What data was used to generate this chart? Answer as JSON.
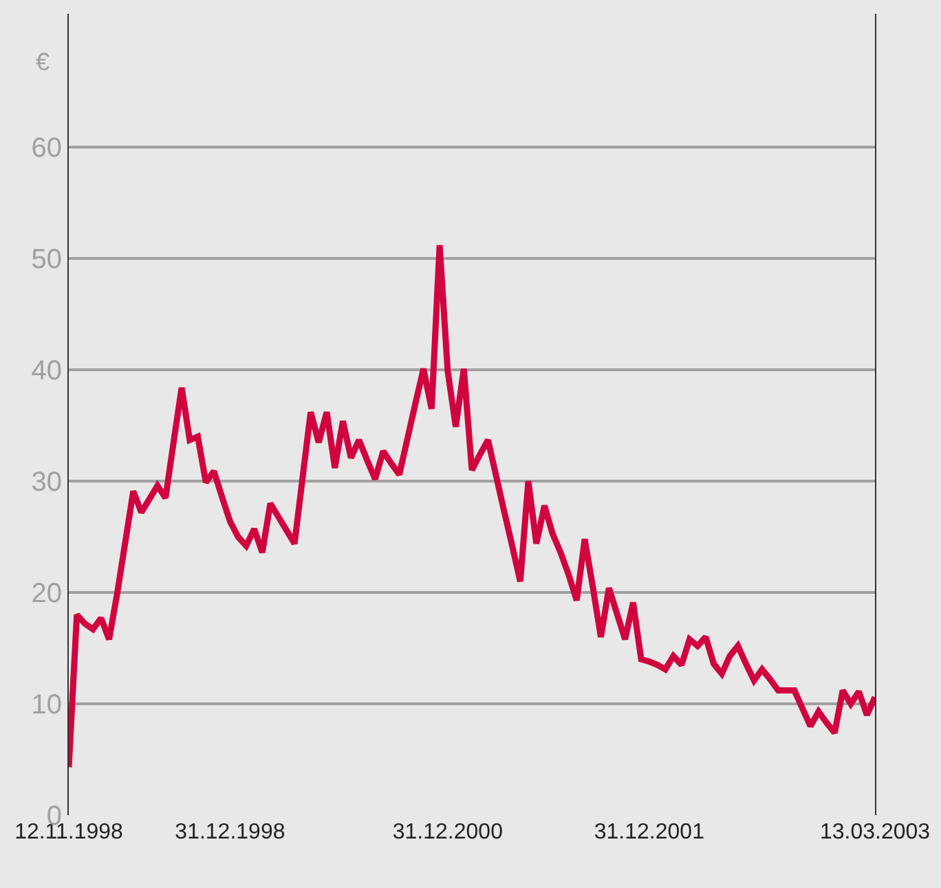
{
  "chart_data": {
    "type": "line",
    "ylabel": "€",
    "categories": [
      "12.11.1998",
      null,
      null,
      null,
      null,
      null,
      null,
      null,
      null,
      null,
      null,
      null,
      null,
      null,
      null,
      null,
      null,
      null,
      null,
      null,
      "31.12.1998",
      null,
      null,
      null,
      null,
      null,
      null,
      null,
      null,
      null,
      null,
      null,
      null,
      null,
      null,
      null,
      null,
      null,
      null,
      null,
      null,
      null,
      null,
      null,
      null,
      null,
      null,
      "31.12.2000",
      null,
      null,
      null,
      null,
      null,
      null,
      null,
      null,
      null,
      null,
      null,
      null,
      null,
      null,
      null,
      null,
      null,
      null,
      null,
      null,
      null,
      null,
      null,
      null,
      "31.12.2001",
      null,
      null,
      null,
      null,
      null,
      null,
      null,
      null,
      null,
      null,
      null,
      null,
      null,
      null,
      null,
      null,
      null,
      null,
      null,
      null,
      null,
      null,
      null,
      null,
      null,
      null,
      null,
      "13.03.2003"
    ],
    "series": [
      {
        "color": "#d0043f",
        "values": [
          4.3,
          18.0,
          17.2,
          16.7,
          17.7,
          15.8,
          19.9,
          24.5,
          29.1,
          27.2,
          28.4,
          29.6,
          28.5,
          33.5,
          38.4,
          33.7,
          34.0,
          29.9,
          30.9,
          28.6,
          26.4,
          25.0,
          24.2,
          25.7,
          23.6,
          28.0,
          26.8,
          25.6,
          24.4,
          30.3,
          36.2,
          33.5,
          36.2,
          31.2,
          35.4,
          32.1,
          33.7,
          31.9,
          30.2,
          32.7,
          31.6,
          30.6,
          33.8,
          37.0,
          40.1,
          36.5,
          51.2,
          39.9,
          34.9,
          40.1,
          31.0,
          32.4,
          33.7,
          30.5,
          27.3,
          24.2,
          21.0,
          30.0,
          24.4,
          27.8,
          25.3,
          23.6,
          21.6,
          19.3,
          24.8,
          20.5,
          16.0,
          20.4,
          18.1,
          15.8,
          19.1,
          14.0,
          13.8,
          13.5,
          13.1,
          14.3,
          13.5,
          15.8,
          15.2,
          16.0,
          13.6,
          12.7,
          14.3,
          15.2,
          13.6,
          12.1,
          13.1,
          12.2,
          11.2,
          11.2,
          11.2,
          9.6,
          8.0,
          9.3,
          8.3,
          7.4,
          11.2,
          10.0,
          11.1,
          9.0,
          10.6
        ]
      }
    ],
    "ylim": [
      0,
      72
    ],
    "yticks": [
      0,
      10,
      20,
      30,
      40,
      50,
      60
    ],
    "grid": "y",
    "marker": "none",
    "line_style": "solid"
  }
}
